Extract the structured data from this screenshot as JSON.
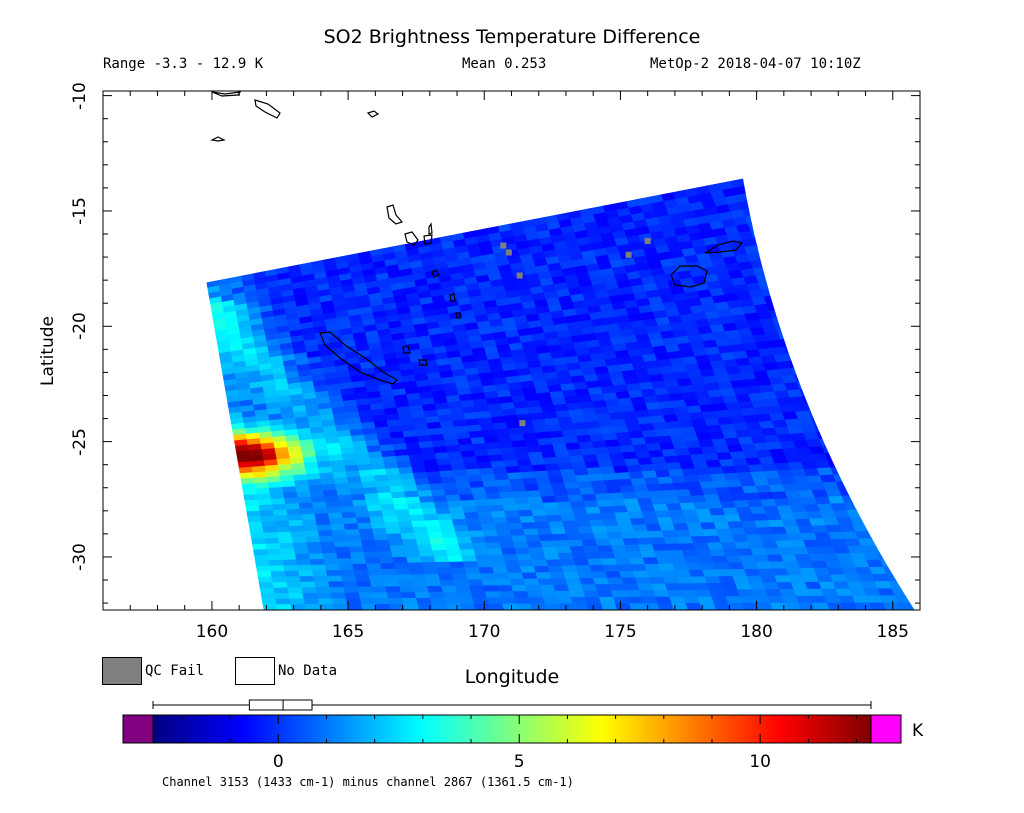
{
  "title": "SO2 Brightness Temperature Difference",
  "info": {
    "range": "Range -3.3 - 12.9 K",
    "mean": "Mean 0.253",
    "satellite": "MetOp-2 2018-04-07 10:10Z"
  },
  "legend": {
    "qc_fail": "QC Fail",
    "no_data": "No Data"
  },
  "colorbar": {
    "unit": "K",
    "tick_labels": [
      "0",
      "5",
      "10"
    ],
    "ticks": [
      0,
      5,
      10
    ],
    "range": [
      -3.3,
      12.9
    ],
    "under_color": "#800080",
    "over_color": "#ff00ff",
    "stops": [
      "#00007f",
      "#0000ff",
      "#007fff",
      "#00ffff",
      "#7fff7f",
      "#ffff00",
      "#ff7f00",
      "#ff0000",
      "#7f0000"
    ],
    "boxplot": {
      "min": -3.3,
      "q1": -0.6,
      "median": 0.1,
      "q3": 0.7,
      "max": 12.9
    },
    "caption": "Channel 3153 (1433 cm-1) minus channel 2867 (1361.5 cm-1)"
  },
  "chart_data": {
    "type": "heatmap",
    "title": "SO2 Brightness Temperature Difference",
    "xlabel": "Longitude",
    "ylabel": "Latitude",
    "xlim": [
      156,
      186
    ],
    "ylim": [
      -32.3,
      -9.8
    ],
    "x_ticks": [
      160,
      165,
      170,
      175,
      180,
      185
    ],
    "y_ticks": [
      -10,
      -15,
      -20,
      -25,
      -30
    ],
    "x_tick_labels": [
      "160",
      "165",
      "170",
      "175",
      "180",
      "185"
    ],
    "y_tick_labels": [
      "-10",
      "-15",
      "-20",
      "-25",
      "-30"
    ],
    "swath_corners": {
      "northwest": [
        159.8,
        -18.1
      ],
      "northeast": [
        179.5,
        -13.6
      ],
      "southwest": [
        161.9,
        -32.3
      ],
      "southeast": [
        185.8,
        -32.3
      ]
    },
    "plume_peak": {
      "lon": 161.3,
      "lat": -25.6,
      "value": 12.9
    },
    "qc_fail_points": [
      [
        170.7,
        -16.5
      ],
      [
        170.9,
        -16.8
      ],
      [
        171.3,
        -17.8
      ],
      [
        175.3,
        -16.9
      ],
      [
        176.0,
        -16.3
      ],
      [
        171.4,
        -24.2
      ]
    ],
    "grid": false,
    "legend": "below"
  }
}
